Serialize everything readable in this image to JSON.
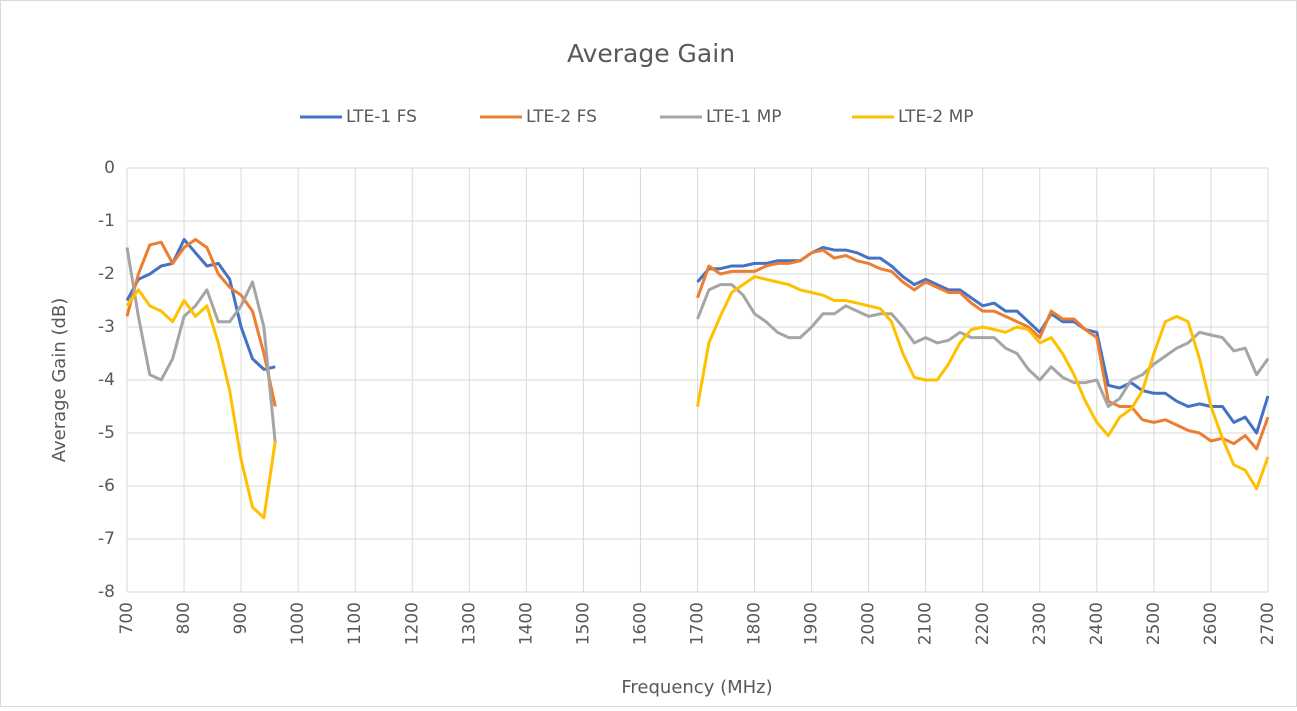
{
  "chart_data": {
    "type": "line",
    "title": "Average Gain",
    "x_label": "Frequency (MHz)",
    "y_label": "Average Gain (dB)",
    "x": [
      700,
      720,
      740,
      760,
      780,
      800,
      820,
      840,
      860,
      880,
      900,
      920,
      940,
      960,
      1000,
      1700,
      1720,
      1740,
      1760,
      1780,
      1800,
      1820,
      1840,
      1860,
      1880,
      1900,
      1920,
      1940,
      1960,
      1980,
      2000,
      2020,
      2040,
      2060,
      2080,
      2100,
      2120,
      2140,
      2160,
      2180,
      2200,
      2220,
      2240,
      2260,
      2280,
      2300,
      2320,
      2340,
      2360,
      2380,
      2400,
      2420,
      2440,
      2460,
      2480,
      2500,
      2520,
      2540,
      2560,
      2580,
      2600,
      2620,
      2640,
      2660,
      2680,
      2700
    ],
    "series": [
      {
        "name": "LTE-1 FS",
        "color": "#4472c4",
        "values": [
          -2.5,
          -2.1,
          -2.0,
          -1.85,
          -1.8,
          -1.35,
          -1.6,
          -1.85,
          -1.8,
          -2.1,
          -3.0,
          -3.6,
          -3.8,
          -3.75,
          null,
          -2.15,
          -1.9,
          -1.9,
          -1.85,
          -1.85,
          -1.8,
          -1.8,
          -1.75,
          -1.75,
          -1.75,
          -1.6,
          -1.5,
          -1.55,
          -1.55,
          -1.6,
          -1.7,
          -1.7,
          -1.85,
          -2.05,
          -2.2,
          -2.1,
          -2.2,
          -2.3,
          -2.3,
          -2.45,
          -2.6,
          -2.55,
          -2.7,
          -2.7,
          -2.9,
          -3.1,
          -2.75,
          -2.9,
          -2.9,
          -3.05,
          -3.1,
          -4.1,
          -4.15,
          -4.05,
          -4.2,
          -4.25,
          -4.25,
          -4.4,
          -4.5,
          -4.45,
          -4.5,
          -4.5,
          -4.8,
          -4.7,
          -5.0,
          -4.3
        ]
      },
      {
        "name": "LTE-2 FS",
        "color": "#ed7d31",
        "values": [
          -2.8,
          -2.0,
          -1.45,
          -1.4,
          -1.8,
          -1.5,
          -1.35,
          -1.5,
          -2.0,
          -2.25,
          -2.4,
          -2.7,
          -3.5,
          -4.5,
          null,
          -2.45,
          -1.85,
          -2.0,
          -1.95,
          -1.95,
          -1.95,
          -1.85,
          -1.8,
          -1.8,
          -1.75,
          -1.6,
          -1.55,
          -1.7,
          -1.65,
          -1.75,
          -1.8,
          -1.9,
          -1.95,
          -2.15,
          -2.3,
          -2.15,
          -2.25,
          -2.35,
          -2.35,
          -2.55,
          -2.7,
          -2.7,
          -2.8,
          -2.9,
          -3.0,
          -3.2,
          -2.7,
          -2.85,
          -2.85,
          -3.05,
          -3.2,
          -4.4,
          -4.5,
          -4.5,
          -4.75,
          -4.8,
          -4.75,
          -4.85,
          -4.95,
          -5.0,
          -5.15,
          -5.1,
          -5.2,
          -5.05,
          -5.3,
          -4.7
        ]
      },
      {
        "name": "LTE-1 MP",
        "color": "#a5a5a5",
        "values": [
          -1.5,
          -2.8,
          -3.9,
          -4.0,
          -3.6,
          -2.8,
          -2.6,
          -2.3,
          -2.9,
          -2.9,
          -2.6,
          -2.15,
          -3.0,
          -5.2,
          null,
          -2.85,
          -2.3,
          -2.2,
          -2.2,
          -2.4,
          -2.75,
          -2.9,
          -3.1,
          -3.2,
          -3.2,
          -3.0,
          -2.75,
          -2.75,
          -2.6,
          -2.7,
          -2.8,
          -2.75,
          -2.75,
          -3.0,
          -3.3,
          -3.2,
          -3.3,
          -3.25,
          -3.1,
          -3.2,
          -3.2,
          -3.2,
          -3.4,
          -3.5,
          -3.8,
          -4.0,
          -3.75,
          -3.95,
          -4.05,
          -4.05,
          -4.0,
          -4.5,
          -4.35,
          -4.0,
          -3.9,
          -3.7,
          -3.55,
          -3.4,
          -3.3,
          -3.1,
          -3.15,
          -3.2,
          -3.45,
          -3.4,
          -3.9,
          -3.6
        ]
      },
      {
        "name": "LTE-2 MP",
        "color": "#ffc000",
        "values": [
          -2.6,
          -2.3,
          -2.6,
          -2.7,
          -2.9,
          -2.5,
          -2.8,
          -2.6,
          -3.3,
          -4.2,
          -5.5,
          -6.4,
          -6.6,
          -5.15,
          null,
          -4.5,
          -3.3,
          -2.8,
          -2.35,
          -2.2,
          -2.05,
          -2.1,
          -2.15,
          -2.2,
          -2.3,
          -2.35,
          -2.4,
          -2.5,
          -2.5,
          -2.55,
          -2.6,
          -2.65,
          -2.9,
          -3.5,
          -3.95,
          -4.0,
          -4.0,
          -3.7,
          -3.3,
          -3.05,
          -3.0,
          -3.05,
          -3.1,
          -3.0,
          -3.05,
          -3.3,
          -3.2,
          -3.5,
          -3.9,
          -4.4,
          -4.8,
          -5.05,
          -4.7,
          -4.55,
          -4.2,
          -3.5,
          -2.9,
          -2.8,
          -2.9,
          -3.6,
          -4.5,
          -5.1,
          -5.6,
          -5.7,
          -6.05,
          -5.45
        ]
      }
    ],
    "xlim": [
      700,
      2700
    ],
    "xticks": [
      700,
      800,
      900,
      1000,
      1100,
      1200,
      1300,
      1400,
      1500,
      1600,
      1700,
      1800,
      1900,
      2000,
      2100,
      2200,
      2300,
      2400,
      2500,
      2600,
      2700
    ],
    "ylim": [
      -8,
      0
    ],
    "yticks": [
      -8,
      -7,
      -6,
      -5,
      -4,
      -3,
      -2,
      -1,
      0
    ],
    "grid": true,
    "legend": "top"
  }
}
